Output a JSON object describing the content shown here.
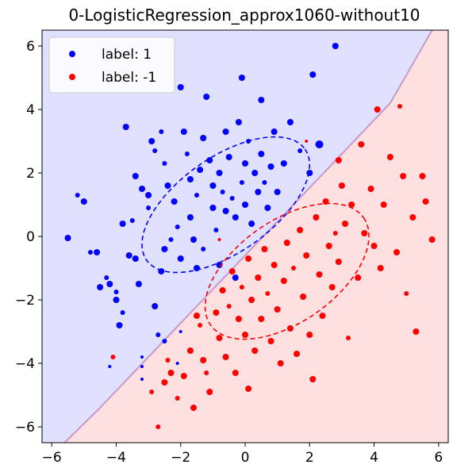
{
  "chart_data": {
    "type": "scatter",
    "title": "0-LogisticRegression_approx1060-without10",
    "xlabel": "",
    "ylabel": "",
    "xlim": [
      -6.3,
      6.3
    ],
    "ylim": [
      -6.5,
      6.5
    ],
    "xticks": [
      -6,
      -4,
      -2,
      0,
      2,
      4,
      6
    ],
    "yticks": [
      -6,
      -4,
      -2,
      0,
      2,
      4,
      6
    ],
    "xtick_labels": [
      "−6",
      "−4",
      "−2",
      "0",
      "2",
      "4",
      "6"
    ],
    "ytick_labels": [
      "−6",
      "−4",
      "−2",
      "0",
      "2",
      "4",
      "6"
    ],
    "grid": false,
    "legend_position": "top-left",
    "background_regions": [
      {
        "label": "1",
        "side": "upper-left",
        "color": "#e0e0ff"
      },
      {
        "label": "-1",
        "side": "lower-right",
        "color": "#ffe0e0"
      }
    ],
    "decision_boundary": {
      "color": "#c79ac9",
      "points": [
        [
          -5.6,
          -6.5
        ],
        [
          -4.5,
          -5.4
        ],
        [
          -3.0,
          -3.8
        ],
        [
          -1.5,
          -2.2
        ],
        [
          0.0,
          -0.6
        ],
        [
          1.5,
          1.0
        ],
        [
          3.0,
          2.6
        ],
        [
          4.5,
          4.2
        ],
        [
          5.8,
          6.5
        ]
      ]
    },
    "ellipses": [
      {
        "series": "label: 1",
        "color": "#0000ff",
        "cx": -0.6,
        "cy": 1.0,
        "rx": 3.0,
        "ry": 1.5,
        "angle_deg": 35
      },
      {
        "series": "label: -1",
        "color": "#ff0000",
        "cx": 1.3,
        "cy": -1.1,
        "rx": 2.9,
        "ry": 1.6,
        "angle_deg": 35
      }
    ],
    "series": [
      {
        "name": "label: 1",
        "color": "#0000ff",
        "points": [
          [
            -5.5,
            -0.05,
            4
          ],
          [
            -5.2,
            1.3,
            3
          ],
          [
            -5.0,
            1.1,
            4
          ],
          [
            -4.8,
            -0.5,
            3
          ],
          [
            -4.6,
            -0.5,
            4
          ],
          [
            -4.5,
            -1.6,
            4
          ],
          [
            -4.3,
            -1.3,
            3
          ],
          [
            -4.2,
            -1.5,
            4
          ],
          [
            -4.0,
            -2.0,
            4
          ],
          [
            -4.0,
            -1.75,
            3
          ],
          [
            -3.9,
            -2.8,
            4
          ],
          [
            -3.8,
            -2.4,
            3
          ],
          [
            -3.8,
            0.4,
            4
          ],
          [
            -3.7,
            3.45,
            4
          ],
          [
            -3.6,
            -0.6,
            4
          ],
          [
            -3.5,
            0.5,
            3
          ],
          [
            -3.4,
            -0.7,
            4
          ],
          [
            -3.3,
            -1.5,
            4
          ],
          [
            -3.2,
            -4.1,
            2
          ],
          [
            -3.2,
            -3.8,
            2
          ],
          [
            -3.4,
            1.9,
            4
          ],
          [
            -3.2,
            1.5,
            4
          ],
          [
            -3.0,
            1.3,
            4
          ],
          [
            -3.0,
            0.9,
            3
          ],
          [
            -2.9,
            3.0,
            4
          ],
          [
            -2.8,
            2.7,
            3
          ],
          [
            -2.8,
            -2.2,
            4
          ],
          [
            -2.7,
            -3.1,
            3
          ],
          [
            -2.6,
            3.3,
            3
          ],
          [
            -2.6,
            -1.1,
            4
          ],
          [
            -2.5,
            2.3,
            3
          ],
          [
            -2.5,
            -0.4,
            4
          ],
          [
            -2.4,
            1.6,
            4
          ],
          [
            -2.3,
            -0.1,
            3
          ],
          [
            -2.2,
            1.1,
            4
          ],
          [
            -2.1,
            0.3,
            3
          ],
          [
            -2.0,
            4.7,
            4
          ],
          [
            -2.0,
            -0.7,
            4
          ],
          [
            -1.9,
            3.3,
            4
          ],
          [
            -1.8,
            2.6,
            3
          ],
          [
            -1.7,
            1.8,
            4
          ],
          [
            -1.7,
            0.6,
            4
          ],
          [
            -1.6,
            -0.1,
            4
          ],
          [
            -1.5,
            1.3,
            3
          ],
          [
            -1.5,
            -1.0,
            4
          ],
          [
            -1.4,
            2.1,
            4
          ],
          [
            -1.3,
            3.1,
            4
          ],
          [
            -1.3,
            -0.4,
            3
          ],
          [
            -1.2,
            4.4,
            4
          ],
          [
            -1.1,
            2.4,
            4
          ],
          [
            -1.0,
            1.6,
            4
          ],
          [
            -1.0,
            0.9,
            4
          ],
          [
            -0.9,
            0.2,
            3
          ],
          [
            -0.8,
            2.0,
            4
          ],
          [
            -0.8,
            -0.9,
            4
          ],
          [
            -0.7,
            1.4,
            3
          ],
          [
            -0.6,
            3.3,
            4
          ],
          [
            -0.6,
            0.8,
            4
          ],
          [
            -0.5,
            2.5,
            4
          ],
          [
            -0.4,
            1.2,
            3
          ],
          [
            -0.3,
            0.6,
            4
          ],
          [
            -0.3,
            -1.3,
            4
          ],
          [
            -0.2,
            3.6,
            4
          ],
          [
            -0.1,
            1.7,
            3
          ],
          [
            -0.1,
            5.0,
            4
          ],
          [
            0.0,
            2.3,
            4
          ],
          [
            0.0,
            1.0,
            4
          ],
          [
            0.1,
            3.0,
            3
          ],
          [
            0.2,
            0.4,
            4
          ],
          [
            0.3,
            2.0,
            4
          ],
          [
            0.4,
            1.4,
            4
          ],
          [
            0.5,
            2.6,
            4
          ],
          [
            0.5,
            4.3,
            4
          ],
          [
            0.6,
            1.7,
            3
          ],
          [
            0.7,
            0.9,
            4
          ],
          [
            0.8,
            2.2,
            4
          ],
          [
            0.9,
            3.3,
            4
          ],
          [
            1.0,
            1.4,
            4
          ],
          [
            1.2,
            2.3,
            4
          ],
          [
            1.4,
            3.6,
            4
          ],
          [
            1.7,
            2.7,
            3
          ],
          [
            2.0,
            2.0,
            4
          ],
          [
            2.1,
            5.1,
            4
          ],
          [
            2.3,
            2.9,
            5
          ],
          [
            2.8,
            6.0,
            4
          ],
          [
            -2.5,
            -3.3,
            3
          ],
          [
            -2.0,
            -3.0,
            2
          ],
          [
            -2.1,
            -4.0,
            2
          ],
          [
            -3.2,
            -4.5,
            2
          ],
          [
            -4.2,
            -4.1,
            2
          ]
        ]
      },
      {
        "name": "label: -1",
        "color": "#ff0000",
        "points": [
          [
            -4.1,
            -3.8,
            3
          ],
          [
            -2.9,
            -4.9,
            3
          ],
          [
            -2.7,
            -6.0,
            3
          ],
          [
            -2.5,
            -4.6,
            4
          ],
          [
            -2.4,
            -3.9,
            3
          ],
          [
            -2.3,
            -4.3,
            4
          ],
          [
            -2.1,
            -5.1,
            3
          ],
          [
            -1.9,
            -4.4,
            4
          ],
          [
            -1.7,
            -3.6,
            4
          ],
          [
            -1.6,
            -5.4,
            4
          ],
          [
            -1.5,
            -2.5,
            4
          ],
          [
            -1.4,
            -2.8,
            3
          ],
          [
            -1.3,
            -3.9,
            4
          ],
          [
            -1.2,
            -4.3,
            3
          ],
          [
            -1.1,
            -4.9,
            4
          ],
          [
            -0.9,
            -2.4,
            4
          ],
          [
            -0.8,
            -3.2,
            4
          ],
          [
            -0.7,
            -1.7,
            4
          ],
          [
            -0.6,
            -3.8,
            4
          ],
          [
            -0.5,
            -2.2,
            3
          ],
          [
            -0.4,
            -1.1,
            4
          ],
          [
            -0.3,
            -4.3,
            4
          ],
          [
            -0.2,
            -2.6,
            4
          ],
          [
            -0.1,
            -1.6,
            3
          ],
          [
            0.0,
            -3.1,
            4
          ],
          [
            0.1,
            -0.7,
            4
          ],
          [
            0.2,
            -2.0,
            4
          ],
          [
            0.3,
            -3.6,
            4
          ],
          [
            0.4,
            -1.3,
            4
          ],
          [
            0.5,
            -2.6,
            4
          ],
          [
            0.6,
            -0.4,
            4
          ],
          [
            0.7,
            -1.8,
            3
          ],
          [
            0.8,
            -3.3,
            4
          ],
          [
            0.9,
            -0.9,
            4
          ],
          [
            1.0,
            -2.3,
            4
          ],
          [
            1.1,
            -4.0,
            4
          ],
          [
            1.2,
            -1.4,
            4
          ],
          [
            1.3,
            -0.2,
            4
          ],
          [
            1.4,
            -2.9,
            4
          ],
          [
            1.5,
            -1.0,
            3
          ],
          [
            1.6,
            -3.7,
            4
          ],
          [
            1.7,
            0.2,
            4
          ],
          [
            1.8,
            -1.9,
            4
          ],
          [
            1.9,
            -0.6,
            4
          ],
          [
            2.0,
            -3.1,
            4
          ],
          [
            2.1,
            -4.5,
            4
          ],
          [
            2.2,
            0.6,
            4
          ],
          [
            2.3,
            -1.2,
            4
          ],
          [
            2.4,
            -2.5,
            4
          ],
          [
            2.5,
            1.1,
            4
          ],
          [
            2.6,
            -0.3,
            4
          ],
          [
            2.7,
            -1.6,
            4
          ],
          [
            2.8,
            0.1,
            3
          ],
          [
            2.9,
            2.4,
            4
          ],
          [
            2.9,
            -0.8,
            4
          ],
          [
            3.0,
            1.6,
            4
          ],
          [
            3.1,
            0.4,
            4
          ],
          [
            3.2,
            -3.2,
            3
          ],
          [
            3.3,
            1.0,
            4
          ],
          [
            3.5,
            -1.3,
            4
          ],
          [
            3.7,
            0.1,
            4
          ],
          [
            3.9,
            1.5,
            4
          ],
          [
            4.0,
            -0.3,
            4
          ],
          [
            4.1,
            4.0,
            4
          ],
          [
            4.2,
            -1.0,
            4
          ],
          [
            4.3,
            1.0,
            4
          ],
          [
            4.5,
            2.5,
            4
          ],
          [
            4.7,
            -0.5,
            4
          ],
          [
            4.8,
            4.1,
            3
          ],
          [
            4.9,
            1.9,
            4
          ],
          [
            5.0,
            -1.8,
            3
          ],
          [
            5.2,
            0.6,
            4
          ],
          [
            5.3,
            -3.0,
            4
          ],
          [
            5.5,
            1.9,
            4
          ],
          [
            5.6,
            1.1,
            4
          ],
          [
            5.8,
            -0.1,
            4
          ],
          [
            3.6,
            2.9,
            4
          ],
          [
            1.9,
            3.0,
            2
          ],
          [
            -0.8,
            -0.1,
            2
          ],
          [
            0.1,
            -4.8,
            4
          ]
        ]
      }
    ]
  },
  "legend": [
    {
      "label": "label: 1",
      "color": "#0000ff"
    },
    {
      "label": "label: -1",
      "color": "#ff0000"
    }
  ]
}
